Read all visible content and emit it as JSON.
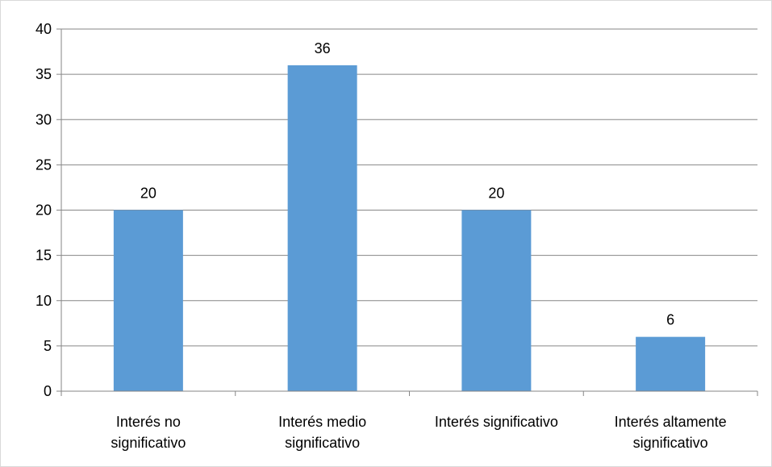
{
  "chart_data": {
    "type": "bar",
    "categories": [
      "Interés no significativo",
      "Interés medio significativo",
      "Interés significativo",
      "Interés  altamente significativo"
    ],
    "category_label_lines": [
      [
        "Interés no",
        "significativo"
      ],
      [
        "Interés medio",
        "significativo"
      ],
      [
        "Interés significativo"
      ],
      [
        "Interés  altamente",
        "significativo"
      ]
    ],
    "values": [
      20,
      36,
      20,
      6
    ],
    "data_labels": [
      "20",
      "36",
      "20",
      "6"
    ],
    "ylim": [
      0,
      40
    ],
    "yticks": [
      0,
      5,
      10,
      15,
      20,
      25,
      30,
      35,
      40
    ],
    "ytick_labels": [
      "0",
      "5",
      "10",
      "15",
      "20",
      "25",
      "30",
      "35",
      "40"
    ],
    "grid": true,
    "legend": "none",
    "title": "",
    "xlabel": "",
    "ylabel": "",
    "colors": {
      "bar": "#5b9bd5",
      "grid": "#868686",
      "axis": "#868686"
    }
  }
}
